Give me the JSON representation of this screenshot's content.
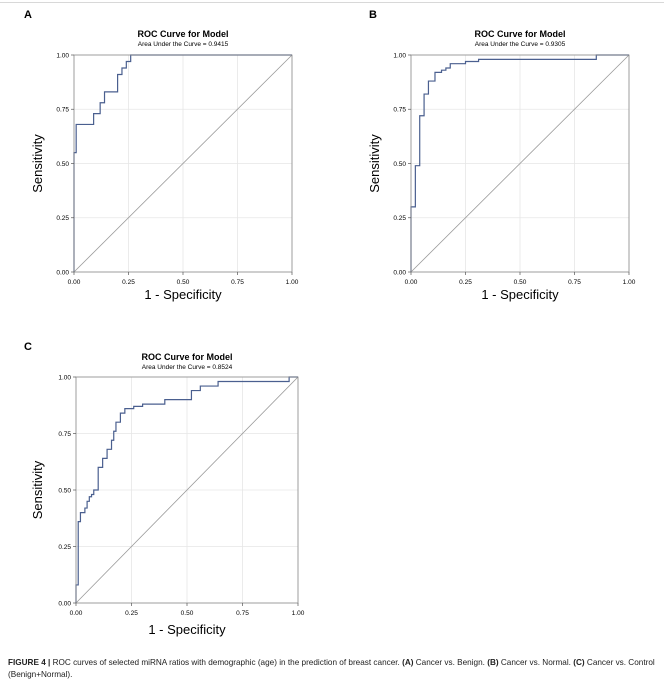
{
  "chart_data": [
    {
      "type": "line",
      "panel_label": "A",
      "title": "ROC Curve for Model",
      "subtitle": "Area Under the Curve = 0.9415",
      "xlabel": "1 - Specificity",
      "ylabel": "Sensitivity",
      "xlim": [
        0,
        1
      ],
      "ylim": [
        0,
        1
      ],
      "xticks": [
        "0.00",
        "0.25",
        "0.50",
        "0.75",
        "1.00"
      ],
      "yticks": [
        "0.00",
        "0.25",
        "0.50",
        "0.75",
        "1.00"
      ],
      "grid": true,
      "colors": {
        "roc": "#4a5f8f",
        "reference": "#9a9a9a"
      },
      "series": [
        {
          "x": [
            0,
            0,
            0.01,
            0.01,
            0.03,
            0.03,
            0.09,
            0.09,
            0.12,
            0.12,
            0.14,
            0.14,
            0.2,
            0.2,
            0.22,
            0.22,
            0.24,
            0.24,
            0.26,
            0.26,
            1.0
          ],
          "y": [
            0,
            0.55,
            0.55,
            0.68,
            0.68,
            0.68,
            0.68,
            0.73,
            0.73,
            0.78,
            0.78,
            0.83,
            0.83,
            0.91,
            0.91,
            0.94,
            0.94,
            0.97,
            0.97,
            1.0,
            1.0
          ]
        },
        {
          "x": [
            0,
            1
          ],
          "y": [
            0,
            1
          ]
        }
      ]
    },
    {
      "type": "line",
      "panel_label": "B",
      "title": "ROC Curve for Model",
      "subtitle": "Area Under the Curve = 0.9305",
      "xlabel": "1 - Specificity",
      "ylabel": "Sensitivity",
      "xlim": [
        0,
        1
      ],
      "ylim": [
        0,
        1
      ],
      "xticks": [
        "0.00",
        "0.25",
        "0.50",
        "0.75",
        "1.00"
      ],
      "yticks": [
        "0.00",
        "0.25",
        "0.50",
        "0.75",
        "1.00"
      ],
      "grid": true,
      "colors": {
        "roc": "#4a5f8f",
        "reference": "#9a9a9a"
      },
      "series": [
        {
          "x": [
            0,
            0,
            0.02,
            0.02,
            0.04,
            0.04,
            0.06,
            0.06,
            0.08,
            0.08,
            0.11,
            0.11,
            0.14,
            0.14,
            0.16,
            0.16,
            0.18,
            0.18,
            0.25,
            0.25,
            0.31,
            0.31,
            0.85,
            0.85,
            1.0
          ],
          "y": [
            0,
            0.3,
            0.3,
            0.49,
            0.49,
            0.72,
            0.72,
            0.82,
            0.82,
            0.88,
            0.88,
            0.92,
            0.92,
            0.93,
            0.93,
            0.94,
            0.94,
            0.96,
            0.96,
            0.97,
            0.97,
            0.98,
            0.98,
            1.0,
            1.0
          ]
        },
        {
          "x": [
            0,
            1
          ],
          "y": [
            0,
            1
          ]
        }
      ]
    },
    {
      "type": "line",
      "panel_label": "C",
      "title": "ROC Curve for Model",
      "subtitle": "Area Under the Curve = 0.8524",
      "xlabel": "1 - Specificity",
      "ylabel": "Sensitivity",
      "xlim": [
        0,
        1
      ],
      "ylim": [
        0,
        1
      ],
      "xticks": [
        "0.00",
        "0.25",
        "0.50",
        "0.75",
        "1.00"
      ],
      "yticks": [
        "0.00",
        "0.25",
        "0.50",
        "0.75",
        "1.00"
      ],
      "grid": true,
      "colors": {
        "roc": "#4a5f8f",
        "reference": "#9a9a9a"
      },
      "series": [
        {
          "x": [
            0,
            0,
            0.01,
            0.01,
            0.02,
            0.02,
            0.04,
            0.04,
            0.05,
            0.05,
            0.06,
            0.06,
            0.07,
            0.07,
            0.08,
            0.08,
            0.1,
            0.1,
            0.12,
            0.12,
            0.14,
            0.14,
            0.16,
            0.16,
            0.17,
            0.17,
            0.18,
            0.18,
            0.2,
            0.2,
            0.22,
            0.22,
            0.26,
            0.26,
            0.3,
            0.3,
            0.4,
            0.4,
            0.52,
            0.52,
            0.56,
            0.56,
            0.64,
            0.64,
            0.96,
            0.96,
            1.0
          ],
          "y": [
            0,
            0.08,
            0.08,
            0.36,
            0.36,
            0.4,
            0.4,
            0.42,
            0.42,
            0.45,
            0.45,
            0.47,
            0.47,
            0.48,
            0.48,
            0.5,
            0.5,
            0.6,
            0.6,
            0.64,
            0.64,
            0.68,
            0.68,
            0.72,
            0.72,
            0.76,
            0.76,
            0.8,
            0.8,
            0.84,
            0.84,
            0.86,
            0.86,
            0.87,
            0.87,
            0.88,
            0.88,
            0.9,
            0.9,
            0.94,
            0.94,
            0.96,
            0.96,
            0.98,
            0.98,
            1.0,
            1.0
          ]
        },
        {
          "x": [
            0,
            1
          ],
          "y": [
            0,
            1
          ]
        }
      ]
    }
  ],
  "caption": {
    "label": "FIGURE 4 |",
    "text": "ROC curves of selected miRNA ratios with demographic (age) in the prediction of breast cancer.",
    "a_label": "(A)",
    "a_text": "Cancer vs. Benign.",
    "b_label": "(B)",
    "b_text": "Cancer vs. Normal.",
    "c_label": "(C)",
    "c_text": "Cancer vs. Control (Benign+Normal)."
  }
}
